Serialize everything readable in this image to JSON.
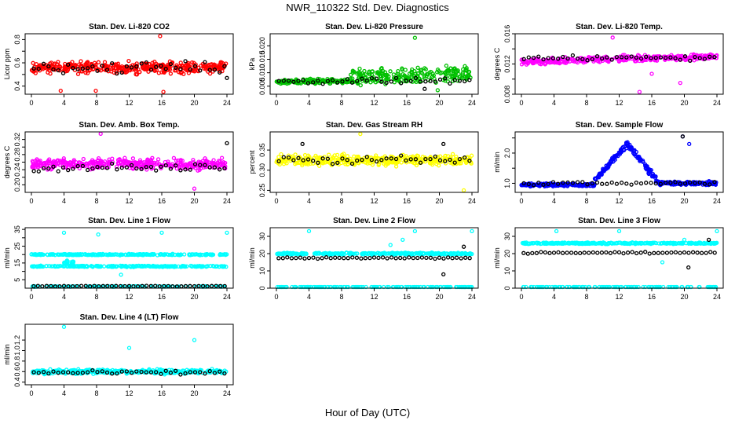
{
  "title": "NWR_110322  Std. Dev. Diagnostics",
  "xlabel": "Hour of Day (UTC)",
  "chart_data": [
    {
      "type": "scatter",
      "title": "Stan. Dev. Li-820 CO2",
      "ylabel": "Licor ppm",
      "color": "#ff0000",
      "xlim": [
        0,
        24
      ],
      "xticks": [
        0,
        4,
        8,
        12,
        16,
        20,
        24
      ],
      "ylim": [
        0.33,
        0.85
      ],
      "yticks": [
        0.4,
        0.5,
        0.6,
        0.7,
        0.8
      ],
      "ytick_labels": [
        "0.4",
        "",
        "0.6",
        "",
        "0.8"
      ],
      "bands": [
        {
          "x": [
            0,
            24
          ],
          "y": [
            0.56,
            0.56
          ],
          "spread": 0.07,
          "color": "#ff0000",
          "n": 380
        }
      ],
      "black_band": {
        "y": 0.56,
        "spread": 0.07,
        "n": 40
      },
      "highlights": [
        {
          "x": 15.8,
          "y": 0.83
        },
        {
          "x": 3.6,
          "y": 0.36
        },
        {
          "x": 7.9,
          "y": 0.36
        },
        {
          "x": 16.2,
          "y": 0.35
        }
      ],
      "black_highlights": [
        {
          "x": 24.0,
          "y": 0.47
        }
      ]
    },
    {
      "type": "scatter",
      "title": "Stan. Dev. Li-820 Pressure",
      "ylabel": "kPa",
      "color": "#00c000",
      "xlim": [
        0,
        24
      ],
      "xticks": [
        0,
        4,
        8,
        12,
        16,
        20,
        24
      ],
      "ylim": [
        0.002,
        0.0245
      ],
      "yticks": [
        0.005,
        0.01,
        0.015,
        0.02
      ],
      "ytick_labels": [
        "0.005",
        "0.010",
        "0.015",
        "0.020"
      ],
      "bands": [
        {
          "x": [
            0,
            9
          ],
          "y": [
            0.0065,
            0.007
          ],
          "spread": 0.0012,
          "color": "#00c000",
          "n": 150
        },
        {
          "x": [
            9,
            24
          ],
          "y": [
            0.008,
            0.0095
          ],
          "spread": 0.0045,
          "color": "#00c000",
          "n": 230
        }
      ],
      "black_band": {
        "y": 0.007,
        "spread": 0.0015,
        "n": 40
      },
      "highlights": [
        {
          "x": 17.0,
          "y": 0.023
        },
        {
          "x": 19.8,
          "y": 0.0035
        }
      ],
      "black_highlights": [
        {
          "x": 18.2,
          "y": 0.004
        }
      ]
    },
    {
      "type": "scatter",
      "title": "Stan. Dev. Li-820 Temp.",
      "ylabel": "degrees C",
      "color": "#ff00ff",
      "xlim": [
        0,
        24
      ],
      "xticks": [
        0,
        4,
        8,
        12,
        16,
        20,
        24
      ],
      "ylim": [
        0.008,
        0.016
      ],
      "yticks": [
        0.008,
        0.01,
        0.012,
        0.014,
        0.016
      ],
      "ytick_labels": [
        "0.008",
        "",
        "0.012",
        "",
        "0.016"
      ],
      "bands": [
        {
          "x": [
            0,
            24
          ],
          "y": [
            0.0123,
            0.013
          ],
          "spread": 0.0006,
          "color": "#ff00ff",
          "n": 340
        }
      ],
      "black_band": {
        "y": 0.0128,
        "spread": 0.0005,
        "n": 40
      },
      "highlights": [
        {
          "x": 11.2,
          "y": 0.0155
        },
        {
          "x": 14.5,
          "y": 0.0083
        },
        {
          "x": 19.5,
          "y": 0.0095
        },
        {
          "x": 16.0,
          "y": 0.0107
        }
      ],
      "black_highlights": []
    },
    {
      "type": "scatter",
      "title": "Stan. Dev. Amb. Box Temp.",
      "ylabel": "degrees C",
      "color": "#ff00ff",
      "xlim": [
        0,
        24
      ],
      "xticks": [
        0,
        4,
        8,
        12,
        16,
        20,
        24
      ],
      "ylim": [
        0.18,
        0.34
      ],
      "yticks": [
        0.2,
        0.22,
        0.24,
        0.26,
        0.28,
        0.3,
        0.32
      ],
      "ytick_labels": [
        "0.20",
        "",
        "0.24",
        "",
        "0.28",
        "",
        "0.32"
      ],
      "bands": [
        {
          "x": [
            0,
            24
          ],
          "y": [
            0.255,
            0.255
          ],
          "spread": 0.02,
          "color": "#ff00ff",
          "n": 380
        }
      ],
      "black_band": {
        "y": 0.245,
        "spread": 0.015,
        "n": 40
      },
      "highlights": [
        {
          "x": 8.5,
          "y": 0.335
        },
        {
          "x": 20.0,
          "y": 0.19
        }
      ],
      "black_highlights": [
        {
          "x": 24.0,
          "y": 0.31
        }
      ]
    },
    {
      "type": "scatter",
      "title": "Stan. Dev. Gas Stream RH",
      "ylabel": "percent",
      "color": "#ffff00",
      "xlim": [
        0,
        24
      ],
      "xticks": [
        0,
        4,
        8,
        12,
        16,
        20,
        24
      ],
      "ylim": [
        0.245,
        0.395
      ],
      "yticks": [
        0.25,
        0.3,
        0.35
      ],
      "ytick_labels": [
        "0.25",
        "0.30",
        "0.35"
      ],
      "bands": [
        {
          "x": [
            0,
            24
          ],
          "y": [
            0.325,
            0.325
          ],
          "spread": 0.018,
          "color": "#ffff00",
          "n": 380
        }
      ],
      "black_band": {
        "y": 0.325,
        "spread": 0.015,
        "n": 40
      },
      "highlights": [
        {
          "x": 10.3,
          "y": 0.39
        },
        {
          "x": 23.0,
          "y": 0.25
        }
      ],
      "black_highlights": [
        {
          "x": 3.2,
          "y": 0.365
        },
        {
          "x": 20.5,
          "y": 0.365
        }
      ]
    },
    {
      "type": "scatter",
      "title": "Stan. Dev. Sample Flow",
      "ylabel": "ml/min",
      "color": "#0000ff",
      "xlim": [
        0,
        24
      ],
      "xticks": [
        0,
        4,
        8,
        12,
        16,
        20,
        24
      ],
      "ylim": [
        0.7,
        2.7
      ],
      "yticks": [
        1.0,
        1.5,
        2.0,
        2.5
      ],
      "ytick_labels": [
        "1.0",
        "",
        "2.0",
        ""
      ],
      "bands": [
        {
          "x": [
            0,
            9
          ],
          "y": [
            0.95,
            0.95
          ],
          "spread": 0.07,
          "color": "#0000ff",
          "n": 150
        },
        {
          "x": [
            9,
            13
          ],
          "y": [
            1.1,
            2.3
          ],
          "spread": 0.15,
          "color": "#0000ff",
          "n": 80
        },
        {
          "x": [
            13,
            17
          ],
          "y": [
            2.3,
            1.0
          ],
          "spread": 0.15,
          "color": "#0000ff",
          "n": 70
        },
        {
          "x": [
            17,
            24
          ],
          "y": [
            1.0,
            1.0
          ],
          "spread": 0.09,
          "color": "#0000ff",
          "n": 120
        }
      ],
      "black_band": {
        "y": 1.0,
        "spread": 0.08,
        "n": 40
      },
      "highlights": [
        {
          "x": 19.8,
          "y": 2.55
        },
        {
          "x": 20.6,
          "y": 2.3
        }
      ],
      "black_highlights": [
        {
          "x": 19.8,
          "y": 2.55
        }
      ]
    },
    {
      "type": "scatter",
      "title": "Stan. Dev. Line 1 Flow",
      "ylabel": "ml/min",
      "color": "#00ffff",
      "xlim": [
        0,
        24
      ],
      "xticks": [
        0,
        4,
        8,
        12,
        16,
        20,
        24
      ],
      "ylim": [
        0,
        36
      ],
      "yticks": [
        5,
        10,
        15,
        20,
        25,
        30,
        35
      ],
      "ytick_labels": [
        "5",
        "",
        "15",
        "",
        "25",
        "",
        "35"
      ],
      "bands": [
        {
          "x": [
            0,
            24
          ],
          "y": [
            20,
            20
          ],
          "spread": 0.5,
          "color": "#00ffff",
          "n": 260
        },
        {
          "x": [
            0,
            24
          ],
          "y": [
            13,
            13
          ],
          "spread": 0.5,
          "color": "#00ffff",
          "n": 260
        },
        {
          "x": [
            4,
            5.2
          ],
          "y": [
            15,
            15
          ],
          "spread": 3.5,
          "color": "#00ffff",
          "n": 25
        },
        {
          "x": [
            0,
            24
          ],
          "y": [
            1,
            1
          ],
          "spread": 0.25,
          "color": "#00ffff",
          "n": 120
        }
      ],
      "black_band": {
        "y": 1.2,
        "spread": 0.3,
        "n": 45
      },
      "highlights": [
        {
          "x": 4.0,
          "y": 33
        },
        {
          "x": 8.2,
          "y": 32
        },
        {
          "x": 16.0,
          "y": 33
        },
        {
          "x": 24.0,
          "y": 33
        },
        {
          "x": 11.0,
          "y": 8
        }
      ],
      "black_highlights": []
    },
    {
      "type": "scatter",
      "title": "Stan. Dev. Line 2 Flow",
      "ylabel": "ml/min",
      "color": "#00ffff",
      "xlim": [
        0,
        24
      ],
      "xticks": [
        0,
        4,
        8,
        12,
        16,
        20,
        24
      ],
      "ylim": [
        0,
        35
      ],
      "yticks": [
        0,
        10,
        20,
        30
      ],
      "ytick_labels": [
        "0",
        "10",
        "20",
        "30"
      ],
      "bands": [
        {
          "x": [
            0,
            24
          ],
          "y": [
            20,
            20
          ],
          "spread": 0.7,
          "color": "#00ffff",
          "n": 300
        },
        {
          "x": [
            0,
            24
          ],
          "y": [
            0.5,
            0.5
          ],
          "spread": 0.25,
          "color": "#00ffff",
          "n": 140
        }
      ],
      "black_band": {
        "y": 17.5,
        "spread": 0.7,
        "n": 45
      },
      "highlights": [
        {
          "x": 4.0,
          "y": 33
        },
        {
          "x": 15.5,
          "y": 28
        },
        {
          "x": 17.0,
          "y": 33
        },
        {
          "x": 24.0,
          "y": 33
        },
        {
          "x": 14.0,
          "y": 25
        }
      ],
      "black_highlights": [
        {
          "x": 20.5,
          "y": 8
        },
        {
          "x": 23.0,
          "y": 24
        }
      ]
    },
    {
      "type": "scatter",
      "title": "Stan. Dev. Line 3 Flow",
      "ylabel": "ml/min",
      "color": "#00ffff",
      "xlim": [
        0,
        24
      ],
      "xticks": [
        0,
        4,
        8,
        12,
        16,
        20,
        24
      ],
      "ylim": [
        0,
        35
      ],
      "yticks": [
        0,
        10,
        20,
        30
      ],
      "ytick_labels": [
        "0",
        "10",
        "20",
        "30"
      ],
      "bands": [
        {
          "x": [
            0,
            24
          ],
          "y": [
            26,
            26
          ],
          "spread": 0.6,
          "color": "#00ffff",
          "n": 300
        },
        {
          "x": [
            0,
            24
          ],
          "y": [
            0.5,
            0.5
          ],
          "spread": 0.25,
          "color": "#00ffff",
          "n": 140
        }
      ],
      "black_band": {
        "y": 20.5,
        "spread": 0.7,
        "n": 45
      },
      "highlights": [
        {
          "x": 4.3,
          "y": 33
        },
        {
          "x": 12.0,
          "y": 33
        },
        {
          "x": 17.3,
          "y": 15
        },
        {
          "x": 20.0,
          "y": 28
        },
        {
          "x": 24.0,
          "y": 33
        }
      ],
      "black_highlights": [
        {
          "x": 20.5,
          "y": 12
        },
        {
          "x": 23.0,
          "y": 28
        }
      ]
    },
    {
      "type": "scatter",
      "title": "Stan. Dev. Line 4 (LT) Flow",
      "ylabel": "ml/min",
      "color": "#00ffff",
      "xlim": [
        0,
        24
      ],
      "xticks": [
        0,
        4,
        8,
        12,
        16,
        20,
        24
      ],
      "ylim": [
        0.35,
        1.5
      ],
      "yticks": [
        0.4,
        0.6,
        0.8,
        1.0,
        1.2
      ],
      "ytick_labels": [
        "0.4",
        "0.6",
        "0.8",
        "1.0",
        "1.2"
      ],
      "bands": [
        {
          "x": [
            0,
            24
          ],
          "y": [
            0.6,
            0.6
          ],
          "spread": 0.06,
          "color": "#00ffff",
          "n": 360
        }
      ],
      "black_band": {
        "y": 0.58,
        "spread": 0.05,
        "n": 40
      },
      "highlights": [
        {
          "x": 4.0,
          "y": 1.45
        },
        {
          "x": 12.0,
          "y": 1.05
        },
        {
          "x": 20.0,
          "y": 1.2
        }
      ],
      "black_highlights": []
    }
  ]
}
